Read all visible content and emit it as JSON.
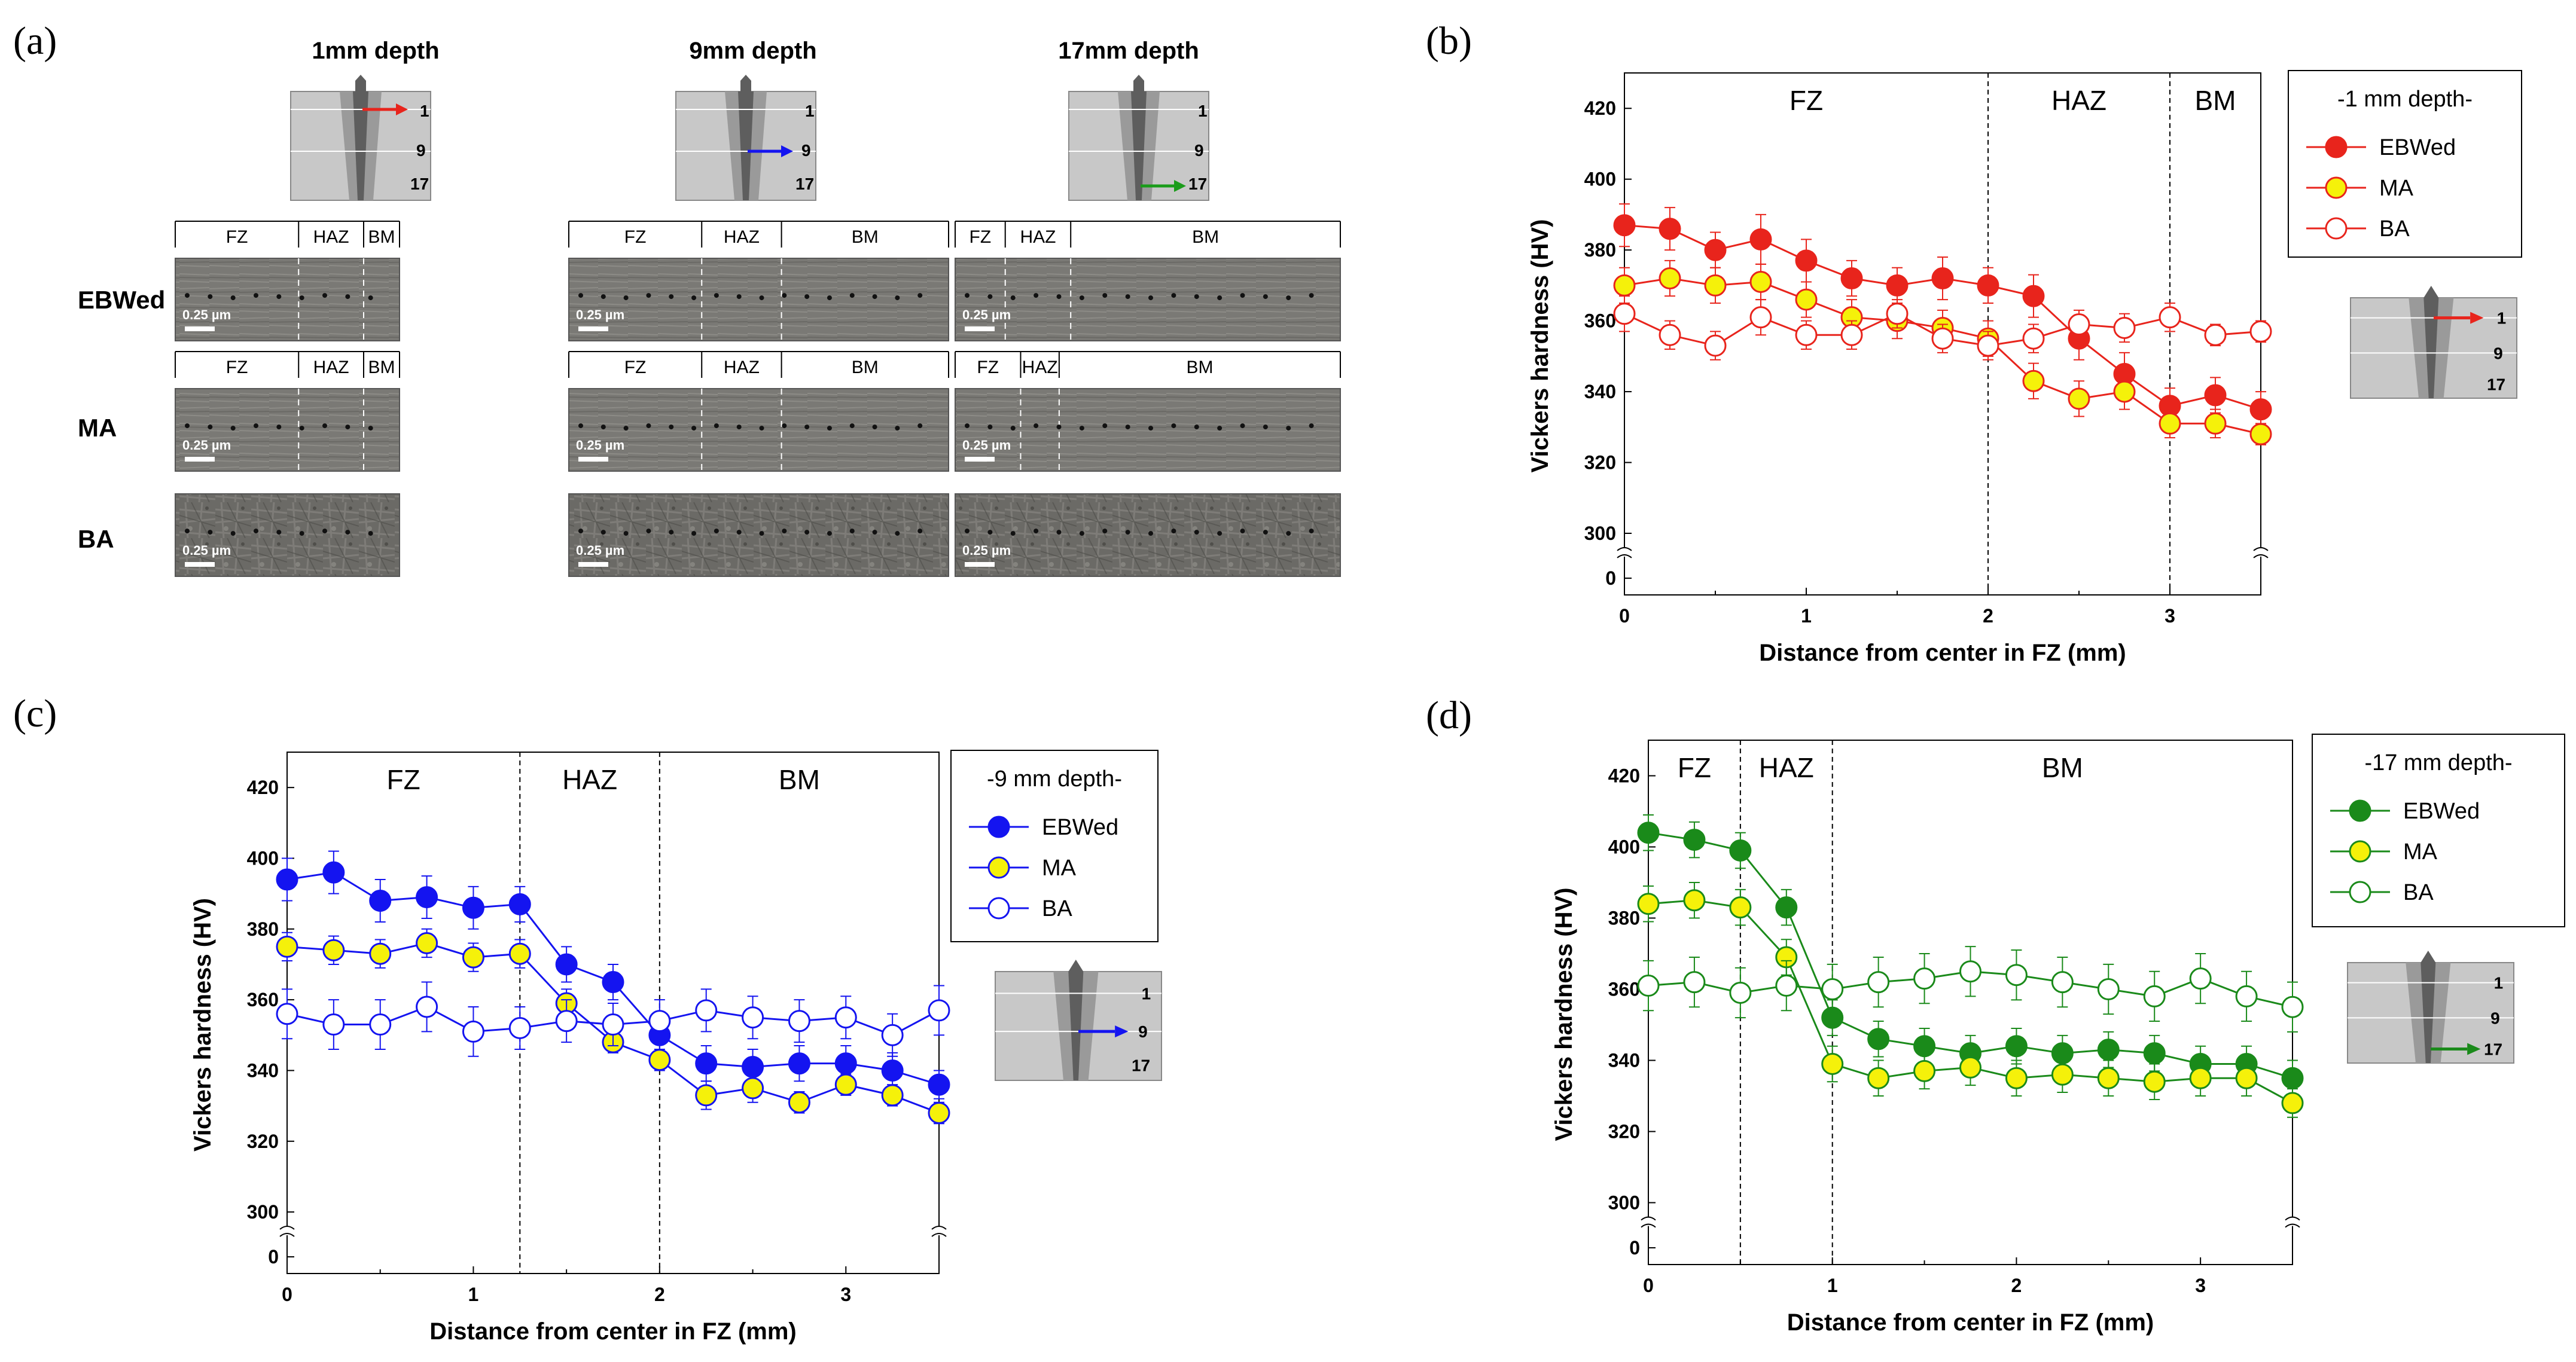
{
  "panel_a": {
    "label": "(a)",
    "depth_titles": [
      "1mm depth",
      "9mm depth",
      "17mm depth"
    ],
    "row_labels": [
      "EBWed",
      "MA",
      "BA"
    ],
    "zone_labels": [
      "FZ",
      "HAZ",
      "BM"
    ],
    "scale_bar": "0.25 µm",
    "schematic_depths": [
      "1",
      "9",
      "17"
    ],
    "arrow_colors": [
      "#e8241c",
      "#1414f0",
      "#1a9c1a"
    ]
  },
  "chart_data": [
    {
      "id": "b",
      "label": "(b)",
      "type": "line",
      "xlabel": "Distance from center in FZ (mm)",
      "ylabel": "Vickers hardness (HV)",
      "xlim": [
        0,
        3.5
      ],
      "ylim_broken": [
        300,
        430
      ],
      "yticks": [
        "0",
        "300",
        "320",
        "340",
        "360",
        "380",
        "400",
        "420"
      ],
      "xticks": [
        "0",
        "1",
        "2",
        "3"
      ],
      "color": "#e8241c",
      "legend_title": "-1 mm depth-",
      "zones": [
        {
          "label": "FZ",
          "from": 0,
          "to": 2
        },
        {
          "label": "HAZ",
          "from": 2,
          "to": 3
        },
        {
          "label": "BM",
          "from": 3,
          "to": 3.5
        }
      ],
      "boundaries": [
        2,
        3
      ],
      "schematic_depths": [
        "1",
        "9",
        "17"
      ],
      "x": [
        0,
        0.25,
        0.5,
        0.75,
        1,
        1.25,
        1.5,
        1.75,
        2,
        2.25,
        2.5,
        2.75,
        3,
        3.25,
        3.5
      ],
      "series": [
        {
          "name": "EBWed",
          "marker": "filled",
          "values": [
            387,
            386,
            380,
            383,
            377,
            372,
            370,
            372,
            370,
            367,
            355,
            345,
            336,
            339,
            335
          ],
          "err": [
            6,
            6,
            5,
            7,
            6,
            5,
            5,
            6,
            5,
            6,
            6,
            6,
            5,
            5,
            5
          ]
        },
        {
          "name": "MA",
          "marker": "yellow",
          "values": [
            370,
            372,
            370,
            371,
            366,
            361,
            360,
            358,
            355,
            343,
            338,
            340,
            331,
            331,
            328
          ],
          "err": [
            5,
            5,
            5,
            5,
            5,
            5,
            5,
            5,
            5,
            5,
            5,
            5,
            4,
            4,
            3
          ]
        },
        {
          "name": "BA",
          "marker": "open",
          "values": [
            362,
            356,
            353,
            361,
            356,
            356,
            362,
            355,
            353,
            355,
            359,
            358,
            361,
            356,
            357
          ],
          "err": [
            5,
            4,
            4,
            5,
            4,
            4,
            4,
            4,
            4,
            4,
            4,
            4,
            4,
            3,
            3
          ]
        }
      ]
    },
    {
      "id": "c",
      "label": "(c)",
      "type": "line",
      "xlabel": "Distance from center in FZ (mm)",
      "ylabel": "Vickers hardness (HV)",
      "xlim": [
        0,
        3.5
      ],
      "ylim_broken": [
        300,
        430
      ],
      "yticks": [
        "0",
        "300",
        "320",
        "340",
        "360",
        "380",
        "400",
        "420"
      ],
      "xticks": [
        "0",
        "1",
        "2",
        "3"
      ],
      "color": "#1414f0",
      "legend_title": "-9 mm depth-",
      "zones": [
        {
          "label": "FZ",
          "from": 0,
          "to": 1.25
        },
        {
          "label": "HAZ",
          "from": 1.25,
          "to": 2
        },
        {
          "label": "BM",
          "from": 2,
          "to": 3.5
        }
      ],
      "boundaries": [
        1.25,
        2
      ],
      "schematic_depths": [
        "1",
        "9",
        "17"
      ],
      "x": [
        0,
        0.25,
        0.5,
        0.75,
        1,
        1.25,
        1.5,
        1.75,
        2,
        2.25,
        2.5,
        2.75,
        3,
        3.25,
        3.5
      ],
      "series": [
        {
          "name": "EBWed",
          "marker": "filled",
          "values": [
            394,
            396,
            388,
            389,
            386,
            387,
            370,
            365,
            350,
            342,
            341,
            342,
            342,
            340,
            336
          ],
          "err": [
            6,
            6,
            6,
            6,
            6,
            5,
            5,
            5,
            5,
            5,
            5,
            5,
            5,
            5,
            4
          ]
        },
        {
          "name": "MA",
          "marker": "yellow",
          "values": [
            375,
            374,
            373,
            376,
            372,
            373,
            359,
            348,
            343,
            333,
            335,
            331,
            336,
            333,
            328
          ],
          "err": [
            4,
            4,
            4,
            4,
            4,
            4,
            4,
            3,
            3,
            4,
            4,
            3,
            3,
            3,
            3
          ]
        },
        {
          "name": "BA",
          "marker": "open",
          "values": [
            356,
            353,
            353,
            358,
            351,
            352,
            354,
            353,
            354,
            357,
            355,
            354,
            355,
            350,
            357
          ],
          "err": [
            7,
            7,
            7,
            7,
            7,
            6,
            6,
            6,
            6,
            6,
            6,
            6,
            6,
            6,
            7
          ]
        }
      ]
    },
    {
      "id": "d",
      "label": "(d)",
      "type": "line",
      "xlabel": "Distance from center in FZ (mm)",
      "ylabel": "Vickers hardness (HV)",
      "xlim": [
        0,
        3.5
      ],
      "ylim_broken": [
        300,
        430
      ],
      "yticks": [
        "0",
        "300",
        "320",
        "340",
        "360",
        "380",
        "400",
        "420"
      ],
      "xticks": [
        "0",
        "1",
        "2",
        "3"
      ],
      "color": "#1a8a1a",
      "legend_title": "-17 mm depth-",
      "zones": [
        {
          "label": "FZ",
          "from": 0,
          "to": 0.5
        },
        {
          "label": "HAZ",
          "from": 0.5,
          "to": 1
        },
        {
          "label": "BM",
          "from": 1,
          "to": 3.5
        }
      ],
      "boundaries": [
        0.5,
        1
      ],
      "schematic_depths": [
        "1",
        "9",
        "17"
      ],
      "x": [
        0,
        0.25,
        0.5,
        0.75,
        1,
        1.25,
        1.5,
        1.75,
        2,
        2.25,
        2.5,
        2.75,
        3,
        3.25,
        3.5
      ],
      "series": [
        {
          "name": "EBWed",
          "marker": "filled",
          "values": [
            404,
            402,
            399,
            383,
            352,
            346,
            344,
            342,
            344,
            342,
            343,
            342,
            339,
            339,
            335
          ],
          "err": [
            5,
            5,
            5,
            5,
            5,
            5,
            5,
            5,
            5,
            5,
            5,
            5,
            5,
            5,
            5
          ]
        },
        {
          "name": "MA",
          "marker": "yellow",
          "values": [
            384,
            385,
            383,
            369,
            339,
            335,
            337,
            338,
            335,
            336,
            335,
            334,
            335,
            335,
            328
          ],
          "err": [
            5,
            5,
            5,
            5,
            5,
            5,
            5,
            5,
            5,
            5,
            5,
            5,
            5,
            5,
            4
          ]
        },
        {
          "name": "BA",
          "marker": "open",
          "values": [
            361,
            362,
            359,
            361,
            360,
            362,
            363,
            365,
            364,
            362,
            360,
            358,
            363,
            358,
            355
          ],
          "err": [
            7,
            7,
            7,
            7,
            7,
            7,
            7,
            7,
            7,
            7,
            7,
            7,
            7,
            7,
            7
          ]
        }
      ]
    }
  ]
}
